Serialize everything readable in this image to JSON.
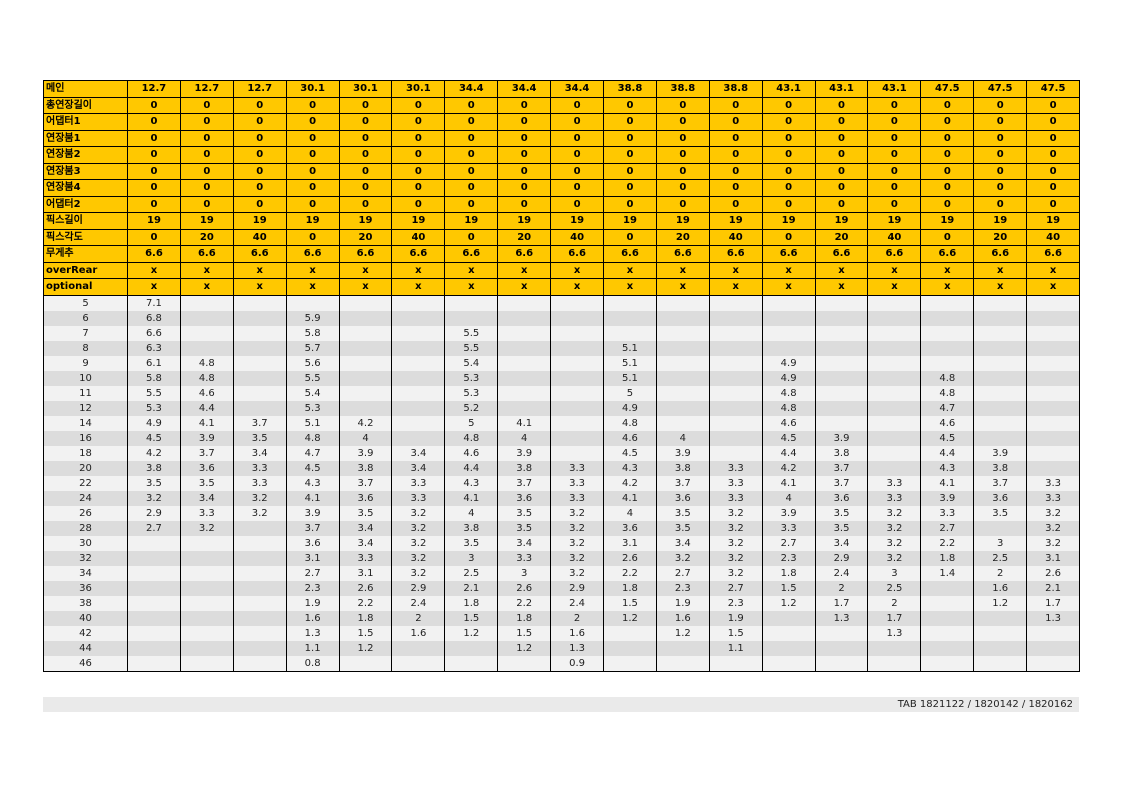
{
  "header_rows": [
    {
      "label": "메인",
      "values": [
        "12.7",
        "12.7",
        "12.7",
        "30.1",
        "30.1",
        "30.1",
        "34.4",
        "34.4",
        "34.4",
        "38.8",
        "38.8",
        "38.8",
        "43.1",
        "43.1",
        "43.1",
        "47.5",
        "47.5",
        "47.5"
      ]
    },
    {
      "label": "총연장길이",
      "values": [
        "0",
        "0",
        "0",
        "0",
        "0",
        "0",
        "0",
        "0",
        "0",
        "0",
        "0",
        "0",
        "0",
        "0",
        "0",
        "0",
        "0",
        "0"
      ]
    },
    {
      "label": "어댑터1",
      "values": [
        "0",
        "0",
        "0",
        "0",
        "0",
        "0",
        "0",
        "0",
        "0",
        "0",
        "0",
        "0",
        "0",
        "0",
        "0",
        "0",
        "0",
        "0"
      ]
    },
    {
      "label": "연장붐1",
      "values": [
        "0",
        "0",
        "0",
        "0",
        "0",
        "0",
        "0",
        "0",
        "0",
        "0",
        "0",
        "0",
        "0",
        "0",
        "0",
        "0",
        "0",
        "0"
      ]
    },
    {
      "label": "연장붐2",
      "values": [
        "0",
        "0",
        "0",
        "0",
        "0",
        "0",
        "0",
        "0",
        "0",
        "0",
        "0",
        "0",
        "0",
        "0",
        "0",
        "0",
        "0",
        "0"
      ]
    },
    {
      "label": "연장붐3",
      "values": [
        "0",
        "0",
        "0",
        "0",
        "0",
        "0",
        "0",
        "0",
        "0",
        "0",
        "0",
        "0",
        "0",
        "0",
        "0",
        "0",
        "0",
        "0"
      ]
    },
    {
      "label": "연장붐4",
      "values": [
        "0",
        "0",
        "0",
        "0",
        "0",
        "0",
        "0",
        "0",
        "0",
        "0",
        "0",
        "0",
        "0",
        "0",
        "0",
        "0",
        "0",
        "0"
      ]
    },
    {
      "label": "어댑터2",
      "values": [
        "0",
        "0",
        "0",
        "0",
        "0",
        "0",
        "0",
        "0",
        "0",
        "0",
        "0",
        "0",
        "0",
        "0",
        "0",
        "0",
        "0",
        "0"
      ]
    },
    {
      "label": "픽스길이",
      "values": [
        "19",
        "19",
        "19",
        "19",
        "19",
        "19",
        "19",
        "19",
        "19",
        "19",
        "19",
        "19",
        "19",
        "19",
        "19",
        "19",
        "19",
        "19"
      ]
    },
    {
      "label": "픽스각도",
      "values": [
        "0",
        "20",
        "40",
        "0",
        "20",
        "40",
        "0",
        "20",
        "40",
        "0",
        "20",
        "40",
        "0",
        "20",
        "40",
        "0",
        "20",
        "40"
      ]
    },
    {
      "label": "무게추",
      "values": [
        "6.6",
        "6.6",
        "6.6",
        "6.6",
        "6.6",
        "6.6",
        "6.6",
        "6.6",
        "6.6",
        "6.6",
        "6.6",
        "6.6",
        "6.6",
        "6.6",
        "6.6",
        "6.6",
        "6.6",
        "6.6"
      ]
    },
    {
      "label": "overRear",
      "values": [
        "x",
        "x",
        "x",
        "x",
        "x",
        "x",
        "x",
        "x",
        "x",
        "x",
        "x",
        "x",
        "x",
        "x",
        "x",
        "x",
        "x",
        "x"
      ]
    },
    {
      "label": "optional",
      "values": [
        "x",
        "x",
        "x",
        "x",
        "x",
        "x",
        "x",
        "x",
        "x",
        "x",
        "x",
        "x",
        "x",
        "x",
        "x",
        "x",
        "x",
        "x"
      ]
    }
  ],
  "body_rows": [
    {
      "radius": "5",
      "values": [
        "7.1",
        "",
        "",
        "",
        "",
        "",
        "",
        "",
        "",
        "",
        "",
        "",
        "",
        "",
        "",
        "",
        "",
        ""
      ]
    },
    {
      "radius": "6",
      "values": [
        "6.8",
        "",
        "",
        "5.9",
        "",
        "",
        "",
        "",
        "",
        "",
        "",
        "",
        "",
        "",
        "",
        "",
        "",
        ""
      ]
    },
    {
      "radius": "7",
      "values": [
        "6.6",
        "",
        "",
        "5.8",
        "",
        "",
        "5.5",
        "",
        "",
        "",
        "",
        "",
        "",
        "",
        "",
        "",
        "",
        ""
      ]
    },
    {
      "radius": "8",
      "values": [
        "6.3",
        "",
        "",
        "5.7",
        "",
        "",
        "5.5",
        "",
        "",
        "5.1",
        "",
        "",
        "",
        "",
        "",
        "",
        "",
        ""
      ]
    },
    {
      "radius": "9",
      "values": [
        "6.1",
        "4.8",
        "",
        "5.6",
        "",
        "",
        "5.4",
        "",
        "",
        "5.1",
        "",
        "",
        "4.9",
        "",
        "",
        "",
        "",
        ""
      ]
    },
    {
      "radius": "10",
      "values": [
        "5.8",
        "4.8",
        "",
        "5.5",
        "",
        "",
        "5.3",
        "",
        "",
        "5.1",
        "",
        "",
        "4.9",
        "",
        "",
        "4.8",
        "",
        ""
      ]
    },
    {
      "radius": "11",
      "values": [
        "5.5",
        "4.6",
        "",
        "5.4",
        "",
        "",
        "5.3",
        "",
        "",
        "5",
        "",
        "",
        "4.8",
        "",
        "",
        "4.8",
        "",
        ""
      ]
    },
    {
      "radius": "12",
      "values": [
        "5.3",
        "4.4",
        "",
        "5.3",
        "",
        "",
        "5.2",
        "",
        "",
        "4.9",
        "",
        "",
        "4.8",
        "",
        "",
        "4.7",
        "",
        ""
      ]
    },
    {
      "radius": "14",
      "values": [
        "4.9",
        "4.1",
        "3.7",
        "5.1",
        "4.2",
        "",
        "5",
        "4.1",
        "",
        "4.8",
        "",
        "",
        "4.6",
        "",
        "",
        "4.6",
        "",
        ""
      ]
    },
    {
      "radius": "16",
      "values": [
        "4.5",
        "3.9",
        "3.5",
        "4.8",
        "4",
        "",
        "4.8",
        "4",
        "",
        "4.6",
        "4",
        "",
        "4.5",
        "3.9",
        "",
        "4.5",
        "",
        ""
      ]
    },
    {
      "radius": "18",
      "values": [
        "4.2",
        "3.7",
        "3.4",
        "4.7",
        "3.9",
        "3.4",
        "4.6",
        "3.9",
        "",
        "4.5",
        "3.9",
        "",
        "4.4",
        "3.8",
        "",
        "4.4",
        "3.9",
        ""
      ]
    },
    {
      "radius": "20",
      "values": [
        "3.8",
        "3.6",
        "3.3",
        "4.5",
        "3.8",
        "3.4",
        "4.4",
        "3.8",
        "3.3",
        "4.3",
        "3.8",
        "3.3",
        "4.2",
        "3.7",
        "",
        "4.3",
        "3.8",
        ""
      ]
    },
    {
      "radius": "22",
      "values": [
        "3.5",
        "3.5",
        "3.3",
        "4.3",
        "3.7",
        "3.3",
        "4.3",
        "3.7",
        "3.3",
        "4.2",
        "3.7",
        "3.3",
        "4.1",
        "3.7",
        "3.3",
        "4.1",
        "3.7",
        "3.3"
      ]
    },
    {
      "radius": "24",
      "values": [
        "3.2",
        "3.4",
        "3.2",
        "4.1",
        "3.6",
        "3.3",
        "4.1",
        "3.6",
        "3.3",
        "4.1",
        "3.6",
        "3.3",
        "4",
        "3.6",
        "3.3",
        "3.9",
        "3.6",
        "3.3"
      ]
    },
    {
      "radius": "26",
      "values": [
        "2.9",
        "3.3",
        "3.2",
        "3.9",
        "3.5",
        "3.2",
        "4",
        "3.5",
        "3.2",
        "4",
        "3.5",
        "3.2",
        "3.9",
        "3.5",
        "3.2",
        "3.3",
        "3.5",
        "3.2"
      ]
    },
    {
      "radius": "28",
      "values": [
        "2.7",
        "3.2",
        "",
        "3.7",
        "3.4",
        "3.2",
        "3.8",
        "3.5",
        "3.2",
        "3.6",
        "3.5",
        "3.2",
        "3.3",
        "3.5",
        "3.2",
        "2.7",
        "",
        "3.2"
      ]
    },
    {
      "radius": "30",
      "values": [
        "",
        "",
        "",
        "3.6",
        "3.4",
        "3.2",
        "3.5",
        "3.4",
        "3.2",
        "3.1",
        "3.4",
        "3.2",
        "2.7",
        "3.4",
        "3.2",
        "2.2",
        "3",
        "3.2"
      ]
    },
    {
      "radius": "32",
      "values": [
        "",
        "",
        "",
        "3.1",
        "3.3",
        "3.2",
        "3",
        "3.3",
        "3.2",
        "2.6",
        "3.2",
        "3.2",
        "2.3",
        "2.9",
        "3.2",
        "1.8",
        "2.5",
        "3.1"
      ]
    },
    {
      "radius": "34",
      "values": [
        "",
        "",
        "",
        "2.7",
        "3.1",
        "3.2",
        "2.5",
        "3",
        "3.2",
        "2.2",
        "2.7",
        "3.2",
        "1.8",
        "2.4",
        "3",
        "1.4",
        "2",
        "2.6"
      ]
    },
    {
      "radius": "36",
      "values": [
        "",
        "",
        "",
        "2.3",
        "2.6",
        "2.9",
        "2.1",
        "2.6",
        "2.9",
        "1.8",
        "2.3",
        "2.7",
        "1.5",
        "2",
        "2.5",
        "",
        "1.6",
        "2.1"
      ]
    },
    {
      "radius": "38",
      "values": [
        "",
        "",
        "",
        "1.9",
        "2.2",
        "2.4",
        "1.8",
        "2.2",
        "2.4",
        "1.5",
        "1.9",
        "2.3",
        "1.2",
        "1.7",
        "2",
        "",
        "1.2",
        "1.7"
      ]
    },
    {
      "radius": "40",
      "values": [
        "",
        "",
        "",
        "1.6",
        "1.8",
        "2",
        "1.5",
        "1.8",
        "2",
        "1.2",
        "1.6",
        "1.9",
        "",
        "1.3",
        "1.7",
        "",
        "",
        "1.3"
      ]
    },
    {
      "radius": "42",
      "values": [
        "",
        "",
        "",
        "1.3",
        "1.5",
        "1.6",
        "1.2",
        "1.5",
        "1.6",
        "",
        "1.2",
        "1.5",
        "",
        "",
        "1.3",
        "",
        "",
        ""
      ]
    },
    {
      "radius": "44",
      "values": [
        "",
        "",
        "",
        "1.1",
        "1.2",
        "",
        "",
        "1.2",
        "1.3",
        "",
        "",
        "1.1",
        "",
        "",
        "",
        "",
        "",
        ""
      ]
    },
    {
      "radius": "46",
      "values": [
        "",
        "",
        "",
        "0.8",
        "",
        "",
        "",
        "",
        "0.9",
        "",
        "",
        "",
        "",
        "",
        "",
        "",
        "",
        ""
      ]
    }
  ],
  "footer": {
    "text": "TAB 1821122 / 1820142 / 1820162"
  },
  "colors": {
    "header_bg": "#ffc800",
    "row_light": "#f2f2f2",
    "row_dark": "#dcdcdc"
  }
}
